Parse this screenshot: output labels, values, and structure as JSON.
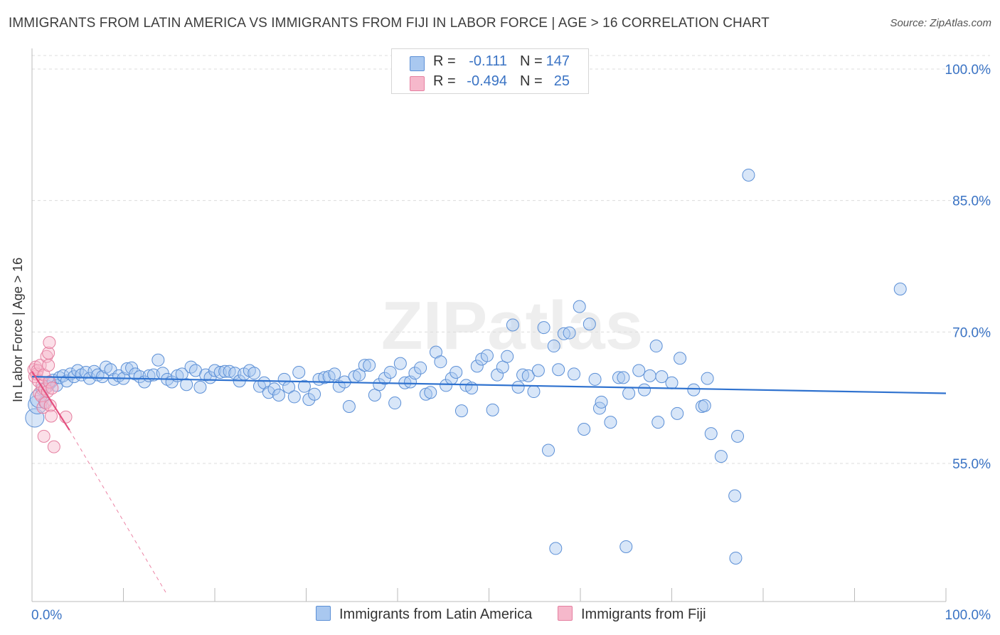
{
  "title": "IMMIGRANTS FROM LATIN AMERICA VS IMMIGRANTS FROM FIJI IN LABOR FORCE | AGE > 16 CORRELATION CHART",
  "source": "Source: ZipAtlas.com",
  "watermark": "ZIPatlas",
  "legend": {
    "rows": [
      {
        "r_label": "R =",
        "r_value": "-0.111",
        "n_label": "N =",
        "n_value": "147",
        "color": "#a9c8f0"
      },
      {
        "r_label": "R =",
        "r_value": "-0.494",
        "n_label": "N =",
        "n_value": "25",
        "color": "#f6b8cb"
      }
    ]
  },
  "bottom_legend": {
    "latin": "Immigrants from Latin America",
    "fiji": "Immigrants from Fiji"
  },
  "colors": {
    "latin_fill": "#a9c8f0",
    "latin_stroke": "#5b8fd6",
    "latin_line": "#2f72cf",
    "fiji_fill": "#f6b8cb",
    "fiji_stroke": "#e57fa0",
    "fiji_line": "#e4507f",
    "tick_label": "#3a73c4"
  },
  "chart_data": {
    "type": "scatter",
    "title": "IMMIGRANTS FROM LATIN AMERICA VS IMMIGRANTS FROM FIJI IN LABOR FORCE | AGE > 16 CORRELATION CHART",
    "xlabel": "",
    "ylabel": "In Labor Force | Age > 16",
    "xlim": [
      0,
      100
    ],
    "ylim": [
      40,
      102
    ],
    "x_tick_labels": [
      "0.0%",
      "100.0%"
    ],
    "y_ticks": [
      55,
      70,
      85,
      100
    ],
    "y_tick_labels": [
      "55.0%",
      "70.0%",
      "85.0%",
      "100.0%"
    ],
    "grid": true,
    "legend_position": "top-center",
    "series": [
      {
        "name": "Immigrants from Latin America",
        "trend": {
          "x": [
            0,
            100
          ],
          "y": [
            64.9,
            63.0
          ]
        },
        "points": [
          [
            0.3,
            60.2
          ],
          [
            0.6,
            61.7
          ],
          [
            0.8,
            62.4
          ],
          [
            1.1,
            63.5
          ],
          [
            1.4,
            62.0
          ],
          [
            1.7,
            63.8
          ],
          [
            2.0,
            64.2
          ],
          [
            2.3,
            64.5
          ],
          [
            2.7,
            63.9
          ],
          [
            3.0,
            64.8
          ],
          [
            3.4,
            65.0
          ],
          [
            3.8,
            64.4
          ],
          [
            4.2,
            65.2
          ],
          [
            4.6,
            64.9
          ],
          [
            5.0,
            65.6
          ],
          [
            5.4,
            65.1
          ],
          [
            5.9,
            65.4
          ],
          [
            6.3,
            64.7
          ],
          [
            6.8,
            65.5
          ],
          [
            7.2,
            65.1
          ],
          [
            7.7,
            64.9
          ],
          [
            8.1,
            66.0
          ],
          [
            8.6,
            65.7
          ],
          [
            9.0,
            64.6
          ],
          [
            9.5,
            65.0
          ],
          [
            10.0,
            64.7
          ],
          [
            10.4,
            65.8
          ],
          [
            10.9,
            65.9
          ],
          [
            11.3,
            65.2
          ],
          [
            11.8,
            64.9
          ],
          [
            12.3,
            64.3
          ],
          [
            12.8,
            65.0
          ],
          [
            13.3,
            65.1
          ],
          [
            13.8,
            66.8
          ],
          [
            14.3,
            65.3
          ],
          [
            14.8,
            64.6
          ],
          [
            15.3,
            64.3
          ],
          [
            15.9,
            65.0
          ],
          [
            16.4,
            65.2
          ],
          [
            16.9,
            64.0
          ],
          [
            17.4,
            66.0
          ],
          [
            17.9,
            65.6
          ],
          [
            18.4,
            63.7
          ],
          [
            19.0,
            65.1
          ],
          [
            19.5,
            64.8
          ],
          [
            20.0,
            65.6
          ],
          [
            20.6,
            65.4
          ],
          [
            21.1,
            65.5
          ],
          [
            21.6,
            65.5
          ],
          [
            22.2,
            65.3
          ],
          [
            22.7,
            64.4
          ],
          [
            23.2,
            65.2
          ],
          [
            23.8,
            65.6
          ],
          [
            24.3,
            65.3
          ],
          [
            24.9,
            63.8
          ],
          [
            25.4,
            64.2
          ],
          [
            25.9,
            63.1
          ],
          [
            26.5,
            63.5
          ],
          [
            27.0,
            62.8
          ],
          [
            27.6,
            64.6
          ],
          [
            28.1,
            63.7
          ],
          [
            28.7,
            62.6
          ],
          [
            29.2,
            65.4
          ],
          [
            29.8,
            63.8
          ],
          [
            30.3,
            62.3
          ],
          [
            30.9,
            62.9
          ],
          [
            31.4,
            64.6
          ],
          [
            32.0,
            64.8
          ],
          [
            32.5,
            64.9
          ],
          [
            33.1,
            65.2
          ],
          [
            33.6,
            63.8
          ],
          [
            34.2,
            64.3
          ],
          [
            34.7,
            61.5
          ],
          [
            35.3,
            64.9
          ],
          [
            35.8,
            65.1
          ],
          [
            36.4,
            66.2
          ],
          [
            36.9,
            66.2
          ],
          [
            37.5,
            62.8
          ],
          [
            38.0,
            64.0
          ],
          [
            38.6,
            64.7
          ],
          [
            39.2,
            65.4
          ],
          [
            39.7,
            61.9
          ],
          [
            40.3,
            66.4
          ],
          [
            40.8,
            64.2
          ],
          [
            41.4,
            64.3
          ],
          [
            41.9,
            65.3
          ],
          [
            42.5,
            65.9
          ],
          [
            43.1,
            62.9
          ],
          [
            43.6,
            63.1
          ],
          [
            44.2,
            67.7
          ],
          [
            44.7,
            66.6
          ],
          [
            45.3,
            63.9
          ],
          [
            45.9,
            64.7
          ],
          [
            46.4,
            65.4
          ],
          [
            47.0,
            61.0
          ],
          [
            47.5,
            63.9
          ],
          [
            48.1,
            63.6
          ],
          [
            48.7,
            66.1
          ],
          [
            49.2,
            66.9
          ],
          [
            49.8,
            67.3
          ],
          [
            50.4,
            61.1
          ],
          [
            50.9,
            65.1
          ],
          [
            51.5,
            66.0
          ],
          [
            52.0,
            67.2
          ],
          [
            52.6,
            70.8
          ],
          [
            53.2,
            63.7
          ],
          [
            53.7,
            65.1
          ],
          [
            54.3,
            65.0
          ],
          [
            54.9,
            63.2
          ],
          [
            55.4,
            65.6
          ],
          [
            56.0,
            70.5
          ],
          [
            56.5,
            56.5
          ],
          [
            57.1,
            68.4
          ],
          [
            57.6,
            65.7
          ],
          [
            58.2,
            69.8
          ],
          [
            58.8,
            69.9
          ],
          [
            59.3,
            65.2
          ],
          [
            59.9,
            72.9
          ],
          [
            60.4,
            58.9
          ],
          [
            61.0,
            70.9
          ],
          [
            61.6,
            64.6
          ],
          [
            62.1,
            61.3
          ],
          [
            62.3,
            62.0
          ],
          [
            63.3,
            59.7
          ],
          [
            64.2,
            64.8
          ],
          [
            64.7,
            64.8
          ],
          [
            65.3,
            63.0
          ],
          [
            66.4,
            65.6
          ],
          [
            67.0,
            63.4
          ],
          [
            67.6,
            65.0
          ],
          [
            68.3,
            68.4
          ],
          [
            68.5,
            59.7
          ],
          [
            68.9,
            64.9
          ],
          [
            70.0,
            64.2
          ],
          [
            70.6,
            60.7
          ],
          [
            70.9,
            67.0
          ],
          [
            72.4,
            63.4
          ],
          [
            73.3,
            61.5
          ],
          [
            73.6,
            61.6
          ],
          [
            73.9,
            64.7
          ],
          [
            74.3,
            58.4
          ],
          [
            75.4,
            55.8
          ],
          [
            76.9,
            51.3
          ],
          [
            77.2,
            58.1
          ],
          [
            78.4,
            87.9
          ],
          [
            95.0,
            74.9
          ],
          [
            57.3,
            45.3
          ],
          [
            65.0,
            45.5
          ],
          [
            77.0,
            44.2
          ]
        ]
      },
      {
        "name": "Immigrants from Fiji",
        "trend": {
          "x": [
            0,
            4.1
          ],
          "y": [
            65.5,
            58.8
          ]
        },
        "trend_extension": {
          "x": [
            4.1,
            14.8
          ],
          "y": [
            58.8,
            40.0
          ]
        },
        "points": [
          [
            0.2,
            65.7
          ],
          [
            0.3,
            64.9
          ],
          [
            0.4,
            66.0
          ],
          [
            0.5,
            65.2
          ],
          [
            0.6,
            65.6
          ],
          [
            0.7,
            64.4
          ],
          [
            0.8,
            63.0
          ],
          [
            0.9,
            66.2
          ],
          [
            1.0,
            62.7
          ],
          [
            1.1,
            63.9
          ],
          [
            1.2,
            61.4
          ],
          [
            1.3,
            65.1
          ],
          [
            1.4,
            63.5
          ],
          [
            1.5,
            61.9
          ],
          [
            1.6,
            67.2
          ],
          [
            1.7,
            63.2
          ],
          [
            1.8,
            66.2
          ],
          [
            1.9,
            64.3
          ],
          [
            2.0,
            61.6
          ],
          [
            2.1,
            60.4
          ],
          [
            2.2,
            63.6
          ],
          [
            1.3,
            58.1
          ],
          [
            2.4,
            56.9
          ],
          [
            1.8,
            67.6
          ],
          [
            3.7,
            60.3
          ],
          [
            1.9,
            68.8
          ]
        ]
      }
    ]
  }
}
